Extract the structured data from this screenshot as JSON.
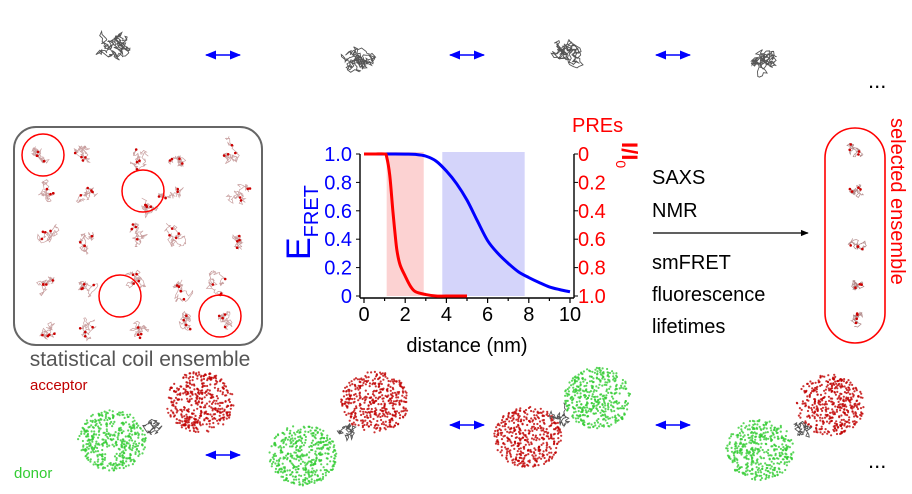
{
  "left_panel": {
    "label": "statistical coil ensemble"
  },
  "right_panel": {
    "label": "selected ensemble"
  },
  "methods": {
    "top": [
      "SAXS",
      "NMR"
    ],
    "bottom": [
      "smFRET",
      "fluorescence",
      "lifetimes"
    ]
  },
  "legend": {
    "acceptor": "acceptor",
    "donor": "donor"
  },
  "ellipsis": "...",
  "colors": {
    "fret": "#0000ff",
    "pre": "#ff0000",
    "fret_band": "#d4d4fa",
    "pre_band": "#fcd2d2",
    "acceptor": "#c00000",
    "donor": "#33cc33",
    "frame": "#666666"
  },
  "chart_data": {
    "type": "line",
    "xlabel": "distance (nm)",
    "ylabel_left": {
      "main": "E",
      "sub": "FRET"
    },
    "ylabel_right": {
      "main": "I/I",
      "sub": "0"
    },
    "right_title": "PREs",
    "xlim": [
      0,
      10
    ],
    "ylim_left": [
      0,
      1.0
    ],
    "ylim_right": [
      1.0,
      0
    ],
    "xticks": [
      "0",
      "2",
      "4",
      "6",
      "8",
      "10"
    ],
    "yticks_left": [
      "0",
      "0.2",
      "0.4",
      "0.6",
      "0.8",
      "1.0"
    ],
    "yticks_right": [
      "0",
      "0.2",
      "0.4",
      "0.6",
      "0.8",
      "1.0"
    ],
    "bands": [
      {
        "name": "PRE range",
        "x": [
          1.1,
          2.9
        ]
      },
      {
        "name": "FRET range",
        "x": [
          3.8,
          7.8
        ]
      }
    ],
    "series": [
      {
        "name": "E_FRET",
        "axis": "left",
        "x": [
          0,
          0.5,
          1,
          1.5,
          2,
          2.5,
          3,
          3.5,
          4,
          4.5,
          5,
          5.5,
          6,
          6.5,
          7,
          7.5,
          8,
          8.5,
          9,
          9.5,
          10
        ],
        "values": [
          1,
          1,
          1,
          1,
          0.999,
          0.997,
          0.985,
          0.95,
          0.88,
          0.79,
          0.675,
          0.53,
          0.39,
          0.3,
          0.23,
          0.17,
          0.13,
          0.095,
          0.064,
          0.045,
          0.03
        ]
      },
      {
        "name": "PRE I/I0",
        "axis": "right",
        "x": [
          0,
          0.5,
          1,
          1.1,
          1.25,
          1.4,
          1.5,
          1.6,
          1.75,
          2,
          2.25,
          2.5,
          3,
          3.5,
          4,
          5
        ],
        "values": [
          0,
          0,
          0,
          0.02,
          0.15,
          0.4,
          0.55,
          0.68,
          0.78,
          0.86,
          0.93,
          0.97,
          0.99,
          1,
          1,
          1
        ]
      }
    ]
  }
}
